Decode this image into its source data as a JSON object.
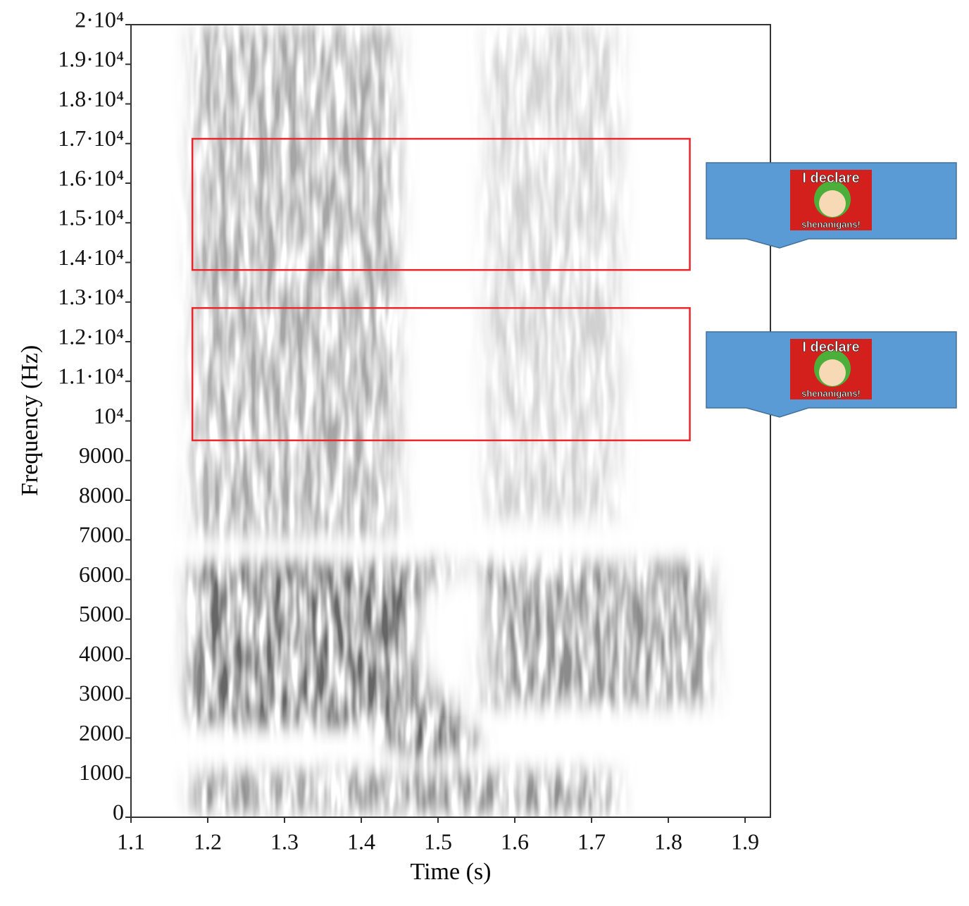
{
  "chart_data": {
    "type": "spectrogram",
    "x_label": "Time (s)",
    "y_label": "Frequency (Hz)",
    "xlim": [
      1.1,
      1.933
    ],
    "ylim": [
      0,
      20000
    ],
    "xticks": [
      1.1,
      1.2,
      1.3,
      1.4,
      1.5,
      1.6,
      1.7,
      1.8,
      1.9
    ],
    "yticks": [
      0,
      1000,
      2000,
      3000,
      4000,
      5000,
      6000,
      7000,
      8000,
      9000,
      {
        "value": 10000,
        "label": "10⁴"
      },
      {
        "value": 11000,
        "label": "1.1·10⁴"
      },
      {
        "value": 12000,
        "label": "1.2·10⁴"
      },
      {
        "value": 13000,
        "label": "1.3·10⁴"
      },
      {
        "value": 14000,
        "label": "1.4·10⁴"
      },
      {
        "value": 15000,
        "label": "1.5·10⁴"
      },
      {
        "value": 16000,
        "label": "1.6·10⁴"
      },
      {
        "value": 17000,
        "label": "1.7·10⁴"
      },
      {
        "value": 18000,
        "label": "1.8·10⁴"
      },
      {
        "value": 19000,
        "label": "1.9·10⁴"
      },
      {
        "value": 20000,
        "label": "2·10⁴"
      }
    ],
    "highlights": [
      {
        "x": [
          1.18,
          1.828
        ],
        "y": [
          13810,
          17120
        ],
        "color": "#e8262b"
      },
      {
        "x": [
          1.18,
          1.828
        ],
        "y": [
          9510,
          12850
        ],
        "color": "#e8262b"
      }
    ],
    "callouts": [
      {
        "text_top": "I declare",
        "text_bottom": "shenanigans!",
        "color": "#5b9bd5"
      },
      {
        "text_top": "I declare",
        "text_bottom": "shenanigans!",
        "color": "#5b9bd5"
      }
    ]
  }
}
